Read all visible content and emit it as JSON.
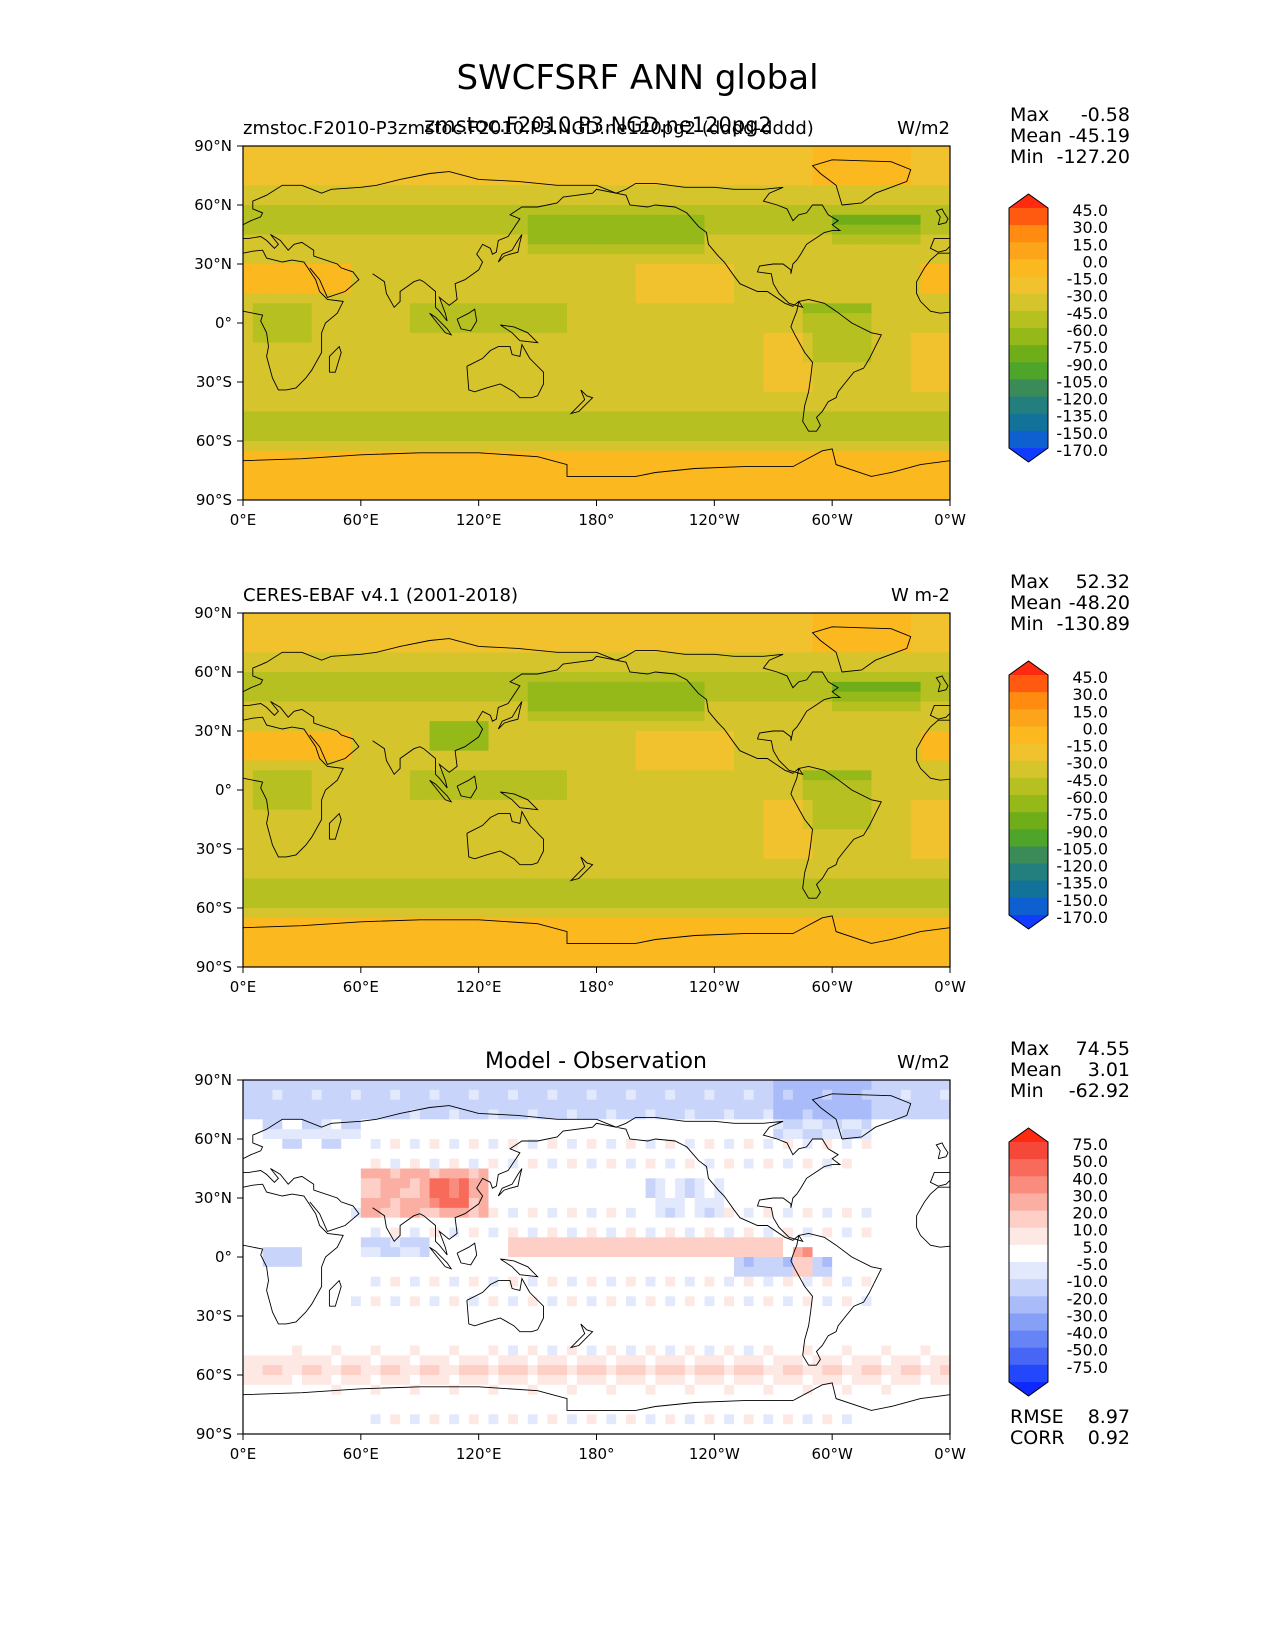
{
  "title": "SWCFSRF ANN global",
  "x_ticks": [
    "0°E",
    "60°E",
    "120°E",
    "180°",
    "120°W",
    "60°W",
    "0°W"
  ],
  "y_ticks": [
    "90°N",
    "60°N",
    "30°N",
    "0°",
    "30°S",
    "60°S",
    "90°S"
  ],
  "stat_labels": {
    "max": "Max",
    "mean": "Mean",
    "min": "Min",
    "rmse": "RMSE",
    "corr": "CORR"
  },
  "chart_data": [
    {
      "type": "heatmap",
      "panel": "test",
      "title_left": "zmstoc.F2010-P3zmstoc.F2010.P3.NGD.ne120pg2 (dddd-dddd)",
      "title_center": "zmstoc.F2010.P3.NGD.ne120pg2",
      "units": "W/m2",
      "stats": {
        "max": "-0.58",
        "mean": "-45.19",
        "min": "-127.20"
      },
      "colorbar": {
        "levels": [
          "45.0",
          "30.0",
          "15.0",
          "0.0",
          "-15.0",
          "-30.0",
          "-45.0",
          "-60.0",
          "-75.0",
          "-90.0",
          "-105.0",
          "-120.0",
          "-135.0",
          "-150.0",
          "-170.0"
        ],
        "colors": [
          "#ff2a10",
          "#ff5a10",
          "#ff8c10",
          "#fca51a",
          "#fbb81f",
          "#f1c22d",
          "#d6c42c",
          "#b6c021",
          "#96b91a",
          "#6fae19",
          "#4fa52a",
          "#3b8b58",
          "#237e7e",
          "#127299",
          "#0e5fd0",
          "#0f3cff"
        ]
      },
      "xlim": [
        0,
        360
      ],
      "ylim": [
        -90,
        90
      ]
    },
    {
      "type": "heatmap",
      "panel": "reference",
      "title_left": "CERES-EBAF v4.1 (2001-2018)",
      "title_center": "",
      "units": "W m-2",
      "stats": {
        "max": "52.32",
        "mean": "-48.20",
        "min": "-130.89"
      },
      "colorbar": {
        "levels": [
          "45.0",
          "30.0",
          "15.0",
          "0.0",
          "-15.0",
          "-30.0",
          "-45.0",
          "-60.0",
          "-75.0",
          "-90.0",
          "-105.0",
          "-120.0",
          "-135.0",
          "-150.0",
          "-170.0"
        ],
        "colors": [
          "#ff2a10",
          "#ff5a10",
          "#ff8c10",
          "#fca51a",
          "#fbb81f",
          "#f1c22d",
          "#d6c42c",
          "#b6c021",
          "#96b91a",
          "#6fae19",
          "#4fa52a",
          "#3b8b58",
          "#237e7e",
          "#127299",
          "#0e5fd0",
          "#0f3cff"
        ]
      },
      "xlim": [
        0,
        360
      ],
      "ylim": [
        -90,
        90
      ]
    },
    {
      "type": "heatmap",
      "panel": "difference",
      "title_left": "",
      "title_center": "Model - Observation",
      "units": "W/m2",
      "stats": {
        "max": "74.55",
        "mean": "3.01",
        "min": "-62.92",
        "rmse": "8.97",
        "corr": "0.92"
      },
      "colorbar": {
        "levels": [
          "75.0",
          "50.0",
          "40.0",
          "30.0",
          "20.0",
          "10.0",
          "5.0",
          "-5.0",
          "-10.0",
          "-20.0",
          "-30.0",
          "-40.0",
          "-50.0",
          "-75.0"
        ],
        "colors": [
          "#ff2a10",
          "#f5483a",
          "#f86a5a",
          "#fa8c7e",
          "#fbaea2",
          "#fdcfc7",
          "#fde8e3",
          "#ffffff",
          "#e3e9fd",
          "#c9d4fb",
          "#a9bbf9",
          "#87a0f7",
          "#6784f6",
          "#4766f6",
          "#2348fb",
          "#0f28ff"
        ]
      },
      "xlim": [
        0,
        360
      ],
      "ylim": [
        -90,
        90
      ]
    }
  ]
}
